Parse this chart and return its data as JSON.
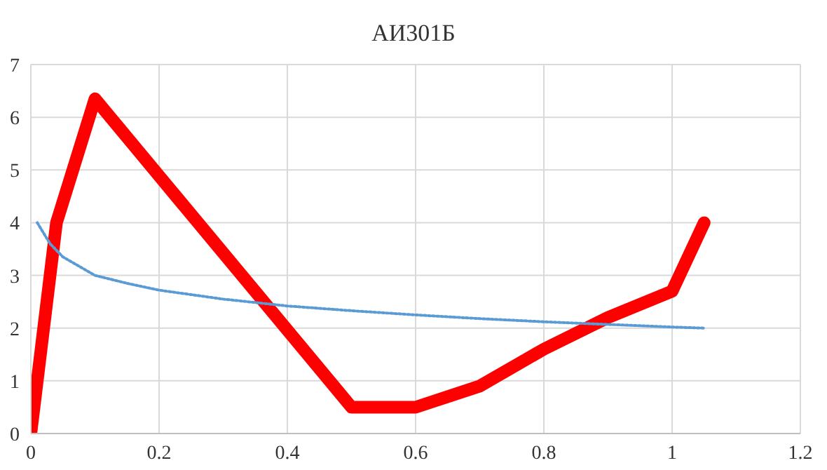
{
  "chart_data": {
    "type": "line",
    "title": "АИ301Б",
    "xlim": [
      0,
      1.2
    ],
    "xticks": [
      0,
      0.2,
      0.4,
      0.6,
      0.8,
      1,
      1.2
    ],
    "ylim": [
      0,
      7
    ],
    "yticks": [
      0,
      1,
      2,
      3,
      4,
      5,
      6,
      7
    ],
    "grid": true,
    "marker": "none",
    "series": [
      {
        "color": "#ff0000",
        "line_style": "solid",
        "x": [
          0,
          0.04,
          0.1,
          0.5,
          0.6,
          0.7,
          0.8,
          0.9,
          1.0,
          1.05
        ],
        "values": [
          0,
          4,
          6.35,
          0.5,
          0.5,
          0.9,
          1.6,
          2.2,
          2.7,
          4.0
        ]
      },
      {
        "color": "#5b9bd5",
        "line_style": "dotted",
        "x": [
          0.01,
          0.03,
          0.05,
          0.1,
          0.15,
          0.2,
          0.3,
          0.4,
          0.5,
          0.6,
          0.7,
          0.8,
          0.9,
          1.0,
          1.05
        ],
        "values": [
          4.0,
          3.6,
          3.35,
          3.0,
          2.85,
          2.72,
          2.55,
          2.42,
          2.33,
          2.25,
          2.18,
          2.12,
          2.07,
          2.02,
          2.0
        ]
      }
    ]
  }
}
